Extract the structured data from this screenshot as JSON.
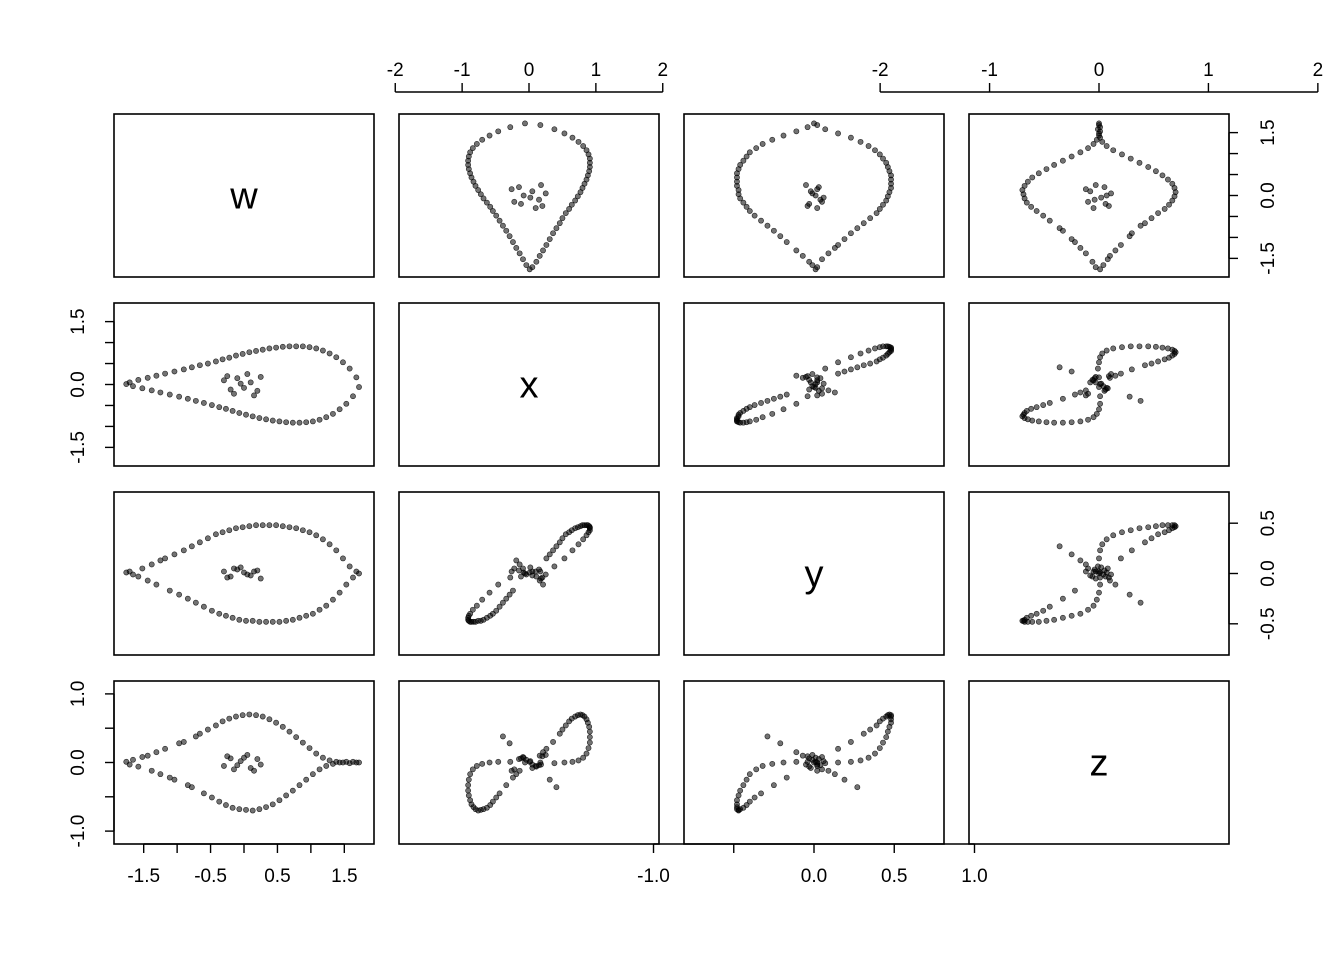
{
  "chart_data": {
    "type": "scatter",
    "matrix_type": "pairs",
    "variables": [
      "w",
      "x",
      "y",
      "z"
    ],
    "point_color": "#000000",
    "point_opacity": 0.55,
    "variable_ranges": {
      "w": [
        -1.8,
        1.8
      ],
      "x": [
        -1.8,
        1.8
      ],
      "y": [
        -0.75,
        0.75
      ],
      "z": [
        -1.1,
        1.1
      ]
    },
    "axes": {
      "bottom": [
        {
          "column": "w",
          "ticks": [
            -1.5,
            -1,
            -0.5,
            0,
            0.5,
            1,
            1.5
          ],
          "labels": [
            "-1.5",
            "",
            "-0.5",
            "",
            "0.5",
            "",
            "1.5"
          ]
        },
        {
          "column": "y",
          "ticks": [
            -1,
            -0.5,
            0,
            0.5,
            1
          ],
          "labels": [
            "-1.0",
            "",
            "0.0",
            "0.5",
            "1.0"
          ]
        }
      ],
      "top": [
        {
          "column": "x",
          "ticks": [
            -2,
            -1,
            0,
            1,
            2
          ],
          "labels": [
            "-2",
            "-1",
            "0",
            "1",
            "2"
          ]
        },
        {
          "column": "z",
          "ticks": [
            -2,
            -1,
            0,
            1,
            2
          ],
          "labels": [
            "-2",
            "-1",
            "0",
            "1",
            "2"
          ]
        }
      ],
      "left": [
        {
          "row": "x",
          "ticks": [
            -1.5,
            -1,
            -0.5,
            0,
            0.5,
            1,
            1.5
          ],
          "labels": [
            "-1.5",
            "",
            "",
            "0.0",
            "",
            "",
            "1.5"
          ]
        },
        {
          "row": "z",
          "ticks": [
            -1,
            -0.5,
            0,
            0.5,
            1
          ],
          "labels": [
            "-1.0",
            "",
            "0.0",
            "",
            "1.0"
          ]
        }
      ],
      "right": [
        {
          "row": "w",
          "ticks": [
            -1.5,
            -1,
            -0.5,
            0,
            0.5,
            1,
            1.5
          ],
          "labels": [
            "-1.5",
            "",
            "",
            "0.0",
            "",
            "",
            "1.5"
          ]
        },
        {
          "row": "y",
          "ticks": [
            -0.5,
            0,
            0.5
          ],
          "labels": [
            "-0.5",
            "0.0",
            "0.5"
          ]
        }
      ]
    },
    "observations": [
      [
        -1.76,
        0.01,
        0.01,
        0.01
      ],
      [
        -1.71,
        0.05,
        0.02,
        -0.03
      ],
      [
        -1.66,
        -0.04,
        -0.01,
        0.04
      ],
      [
        -1.58,
        0.11,
        -0.03,
        -0.06
      ],
      [
        -1.52,
        -0.09,
        0.05,
        0.08
      ],
      [
        -1.44,
        0.16,
        -0.07,
        0.1
      ],
      [
        -1.38,
        -0.14,
        0.09,
        -0.12
      ],
      [
        -1.31,
        0.21,
        -0.11,
        0.15
      ],
      [
        -1.25,
        -0.19,
        0.13,
        -0.17
      ],
      [
        -1.18,
        0.26,
        0.15,
        0.2
      ],
      [
        -1.11,
        -0.24,
        -0.17,
        -0.22
      ],
      [
        -1.04,
        0.31,
        0.19,
        -0.25
      ],
      [
        -0.97,
        -0.29,
        -0.21,
        0.28
      ],
      [
        -0.9,
        0.36,
        0.23,
        0.3
      ],
      [
        -0.84,
        -0.34,
        -0.25,
        -0.33
      ],
      [
        -0.78,
        0.41,
        0.27,
        -0.36
      ],
      [
        -0.72,
        -0.39,
        -0.29,
        0.38
      ],
      [
        -0.66,
        0.46,
        0.31,
        0.42
      ],
      [
        -0.6,
        -0.44,
        -0.33,
        -0.45
      ],
      [
        -0.54,
        0.5,
        0.35,
        0.48
      ],
      [
        -0.48,
        -0.49,
        -0.37,
        -0.51
      ],
      [
        -0.42,
        0.55,
        0.39,
        0.54
      ],
      [
        -0.37,
        -0.54,
        -0.4,
        -0.57
      ],
      [
        -0.32,
        0.6,
        0.41,
        0.6
      ],
      [
        -0.27,
        -0.58,
        -0.42,
        -0.62
      ],
      [
        -0.22,
        0.64,
        0.43,
        0.64
      ],
      [
        -0.17,
        -0.63,
        -0.44,
        -0.66
      ],
      [
        -0.12,
        0.69,
        0.45,
        0.67
      ],
      [
        -0.07,
        -0.68,
        -0.46,
        -0.68
      ],
      [
        -0.02,
        0.73,
        0.46,
        0.69
      ],
      [
        0.03,
        -0.72,
        -0.47,
        -0.69
      ],
      [
        0.08,
        0.77,
        0.47,
        0.7
      ],
      [
        0.13,
        -0.76,
        -0.47,
        -0.7
      ],
      [
        0.18,
        0.8,
        0.48,
        0.69
      ],
      [
        0.23,
        -0.8,
        -0.48,
        -0.68
      ],
      [
        0.28,
        0.83,
        0.48,
        0.67
      ],
      [
        0.33,
        -0.83,
        -0.48,
        -0.65
      ],
      [
        0.38,
        0.86,
        0.48,
        0.63
      ],
      [
        0.43,
        -0.86,
        -0.48,
        -0.61
      ],
      [
        0.48,
        0.88,
        0.48,
        0.58
      ],
      [
        0.53,
        -0.88,
        -0.48,
        -0.55
      ],
      [
        0.58,
        0.9,
        0.47,
        0.52
      ],
      [
        0.63,
        -0.9,
        -0.47,
        -0.48
      ],
      [
        0.68,
        0.91,
        0.46,
        0.45
      ],
      [
        0.73,
        -0.91,
        -0.46,
        -0.41
      ],
      [
        0.78,
        0.91,
        0.45,
        0.37
      ],
      [
        0.83,
        -0.91,
        -0.44,
        -0.33
      ],
      [
        0.88,
        0.91,
        0.43,
        0.29
      ],
      [
        0.93,
        -0.9,
        -0.42,
        -0.25
      ],
      [
        0.98,
        0.89,
        0.41,
        0.21
      ],
      [
        1.03,
        -0.88,
        -0.4,
        -0.17
      ],
      [
        1.08,
        0.86,
        0.38,
        0.13
      ],
      [
        1.13,
        -0.84,
        -0.36,
        -0.1
      ],
      [
        1.18,
        0.81,
        0.34,
        0.07
      ],
      [
        1.23,
        -0.78,
        -0.32,
        -0.05
      ],
      [
        1.28,
        0.74,
        0.29,
        0.03
      ],
      [
        1.33,
        -0.7,
        -0.26,
        -0.02
      ],
      [
        1.38,
        0.65,
        0.23,
        0.01
      ],
      [
        1.43,
        -0.59,
        -0.19,
        0.0
      ],
      [
        1.48,
        0.53,
        0.15,
        0.0
      ],
      [
        1.53,
        -0.46,
        -0.11,
        0.01
      ],
      [
        1.58,
        0.38,
        0.07,
        -0.01
      ],
      [
        1.63,
        -0.28,
        -0.04,
        0.01
      ],
      [
        1.68,
        0.17,
        0.02,
        0.0
      ],
      [
        1.72,
        -0.06,
        0.0,
        0.0
      ],
      [
        -0.3,
        0.1,
        0.02,
        -0.05
      ],
      [
        -0.2,
        -0.12,
        -0.03,
        0.06
      ],
      [
        -0.1,
        0.15,
        0.04,
        -0.04
      ],
      [
        0.0,
        -0.08,
        0.01,
        0.07
      ],
      [
        0.1,
        0.05,
        -0.02,
        -0.08
      ],
      [
        0.2,
        -0.15,
        0.03,
        0.05
      ],
      [
        -0.25,
        0.2,
        -0.04,
        0.09
      ],
      [
        -0.15,
        -0.22,
        0.05,
        -0.1
      ],
      [
        0.05,
        0.25,
        -0.01,
        0.11
      ],
      [
        0.15,
        -0.26,
        0.02,
        -0.12
      ],
      [
        -0.05,
        0.02,
        0.06,
        0.02
      ],
      [
        0.25,
        0.18,
        -0.05,
        -0.03
      ]
    ]
  }
}
